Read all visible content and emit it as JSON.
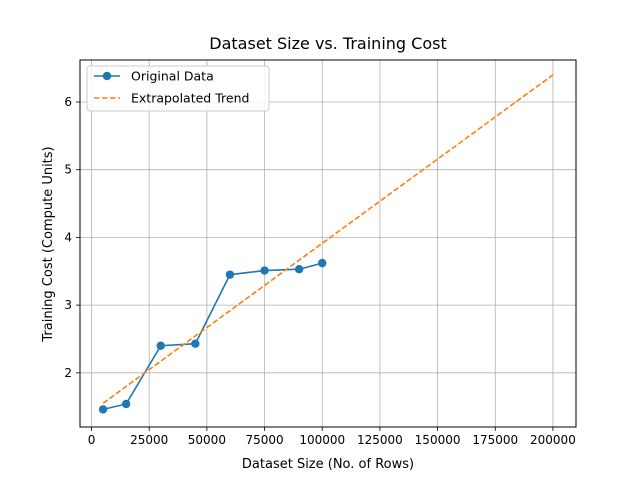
{
  "chart_data": {
    "type": "line",
    "title": "Dataset Size vs. Training Cost",
    "xlabel": "Dataset Size (No. of Rows)",
    "ylabel": "Training Cost (Compute Units)",
    "xlim": [
      -5000,
      210000
    ],
    "ylim": [
      1.2,
      6.62
    ],
    "xticks": [
      0,
      25000,
      50000,
      75000,
      100000,
      125000,
      150000,
      175000,
      200000
    ],
    "yticks": [
      2,
      3,
      4,
      5,
      6
    ],
    "grid": true,
    "legend_position": "upper-left",
    "series": [
      {
        "name": "Original Data",
        "style": "solid-with-circles",
        "color": "#1f77b4",
        "x": [
          5000,
          15000,
          30000,
          45000,
          60000,
          75000,
          90000,
          100000
        ],
        "y": [
          1.46,
          1.54,
          2.4,
          2.43,
          3.45,
          3.51,
          3.53,
          3.62
        ]
      },
      {
        "name": "Extrapolated Trend",
        "style": "dashed",
        "color": "#ff7f0e",
        "x": [
          5000,
          200000
        ],
        "y": [
          1.55,
          6.4
        ]
      }
    ]
  }
}
